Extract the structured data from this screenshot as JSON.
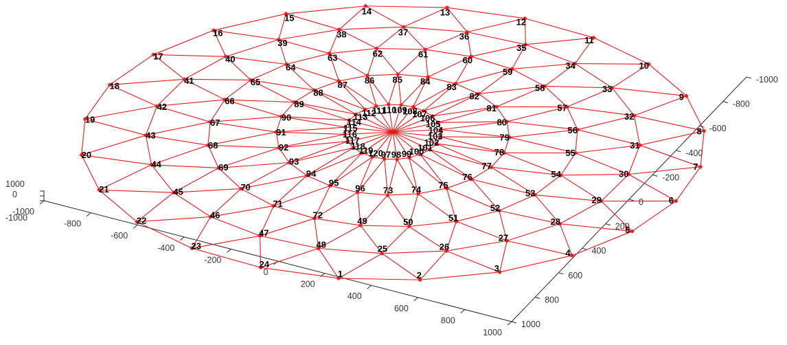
{
  "figure": {
    "title": "",
    "accent_color": "#e8181c",
    "label_color": "#000000",
    "axis_color": "#262626"
  },
  "axes": {
    "x_ticks": [
      "-1000",
      "-800",
      "-600",
      "-400",
      "-200",
      "0",
      "200",
      "400",
      "600",
      "800",
      "1000"
    ],
    "y_ticks": [
      "-1000",
      "-800",
      "-600",
      "-400",
      "-200",
      "0",
      "200",
      "400",
      "600",
      "800",
      "1000"
    ],
    "z_ticks": [
      "1000",
      "0",
      "-1000"
    ]
  },
  "structure": {
    "type": "single-layer lamella dome",
    "center_node_label": "",
    "rings": [
      {
        "ring": 1,
        "nodes": [
          97,
          98,
          99,
          100,
          101,
          102,
          103,
          104,
          105,
          106,
          107,
          108,
          109,
          110,
          111,
          112,
          113,
          114,
          115,
          116,
          117,
          118,
          119,
          120
        ]
      },
      {
        "ring": 2,
        "nodes": [
          73,
          74,
          75,
          76,
          77,
          78,
          79,
          80,
          81,
          82,
          83,
          84,
          85,
          86,
          87,
          88,
          89,
          90,
          91,
          92,
          93,
          94,
          95,
          96
        ]
      },
      {
        "ring": 3,
        "nodes": [
          49,
          50,
          51,
          52,
          53,
          54,
          55,
          56,
          57,
          58,
          59,
          60,
          61,
          62,
          63,
          64,
          65,
          66,
          67,
          68,
          69,
          70,
          71,
          72
        ]
      },
      {
        "ring": 4,
        "nodes": [
          25,
          26,
          27,
          28,
          29,
          30,
          31,
          32,
          33,
          34,
          35,
          36,
          37,
          38,
          39,
          40,
          41,
          42,
          43,
          44,
          45,
          46,
          47,
          48
        ]
      },
      {
        "ring": 5,
        "nodes": [
          1,
          2,
          3,
          4,
          5,
          6,
          7,
          8,
          9,
          10,
          11,
          12,
          13,
          14,
          15,
          16,
          17,
          18,
          19,
          20,
          21,
          22,
          23,
          24
        ]
      }
    ]
  }
}
